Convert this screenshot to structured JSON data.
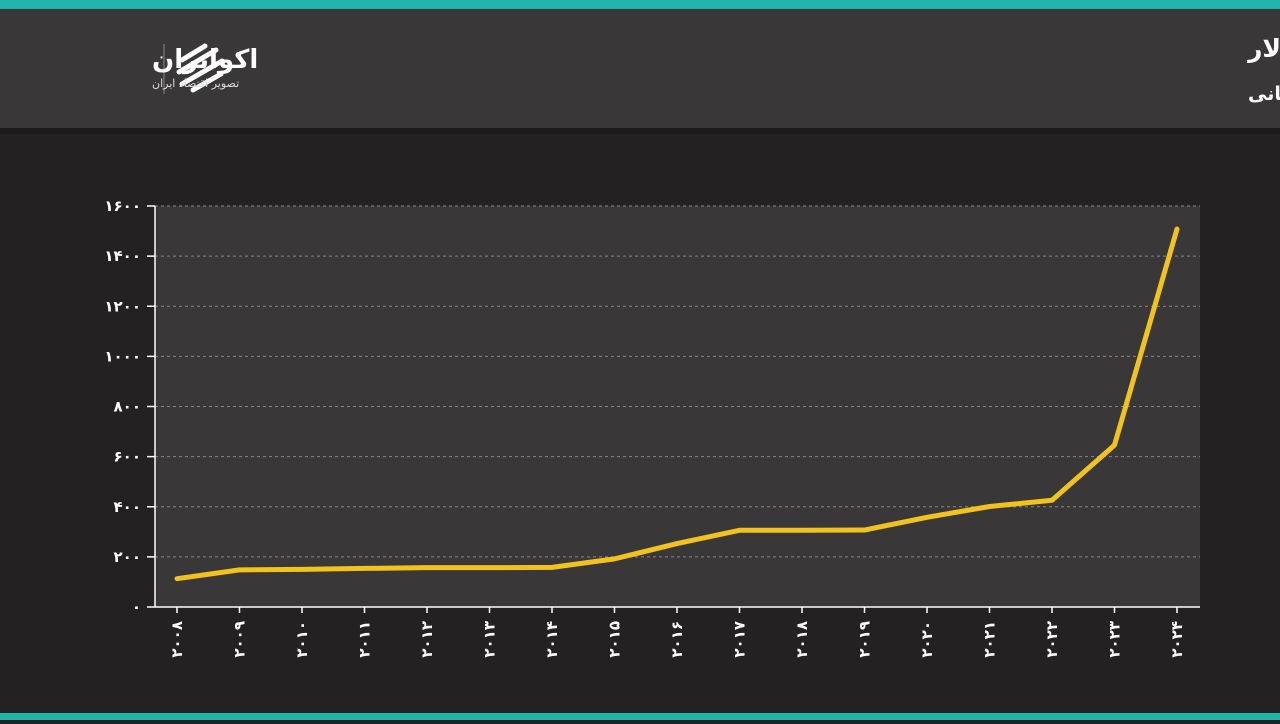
{
  "logo": {
    "name": "اکوایران",
    "tagline": "تصویر اقتصاد ایران"
  },
  "chart_data": {
    "type": "line",
    "title": "نرخ برابری نایرا در برابر دلار",
    "subtitle": "(واحد: نایرا)- منبع: بانک جهانی",
    "categories": [
      "۲۰۰۸",
      "۲۰۰۹",
      "۲۰۱۰",
      "۲۰۱۱",
      "۲۰۱۲",
      "۲۰۱۳",
      "۲۰۱۴",
      "۲۰۱۵",
      "۲۰۱۶",
      "۲۰۱۷",
      "۲۰۱۸",
      "۲۰۱۹",
      "۲۰۲۰",
      "۲۰۲۱",
      "۲۰۲۲",
      "۲۰۲۳",
      "۲۰۲۴"
    ],
    "series": [
      {
        "color": "#f2c31c",
        "values": [
          113,
          148,
          150,
          154,
          157,
          157,
          158,
          192,
          253,
          306,
          306,
          307,
          358,
          401,
          426,
          646,
          1508
        ]
      }
    ],
    "ylim": [
      0,
      1600
    ],
    "yticks": [
      {
        "value": 0,
        "label": "۰"
      },
      {
        "value": 200,
        "label": "۲۰۰"
      },
      {
        "value": 400,
        "label": "۴۰۰"
      },
      {
        "value": 600,
        "label": "۶۰۰"
      },
      {
        "value": 800,
        "label": "۸۰۰"
      },
      {
        "value": 1000,
        "label": "۱۰۰۰"
      },
      {
        "value": 1200,
        "label": "۱۲۰۰"
      },
      {
        "value": 1400,
        "label": "۱۴۰۰"
      },
      {
        "value": 1600,
        "label": "۱۶۰۰"
      }
    ],
    "grid": true
  }
}
